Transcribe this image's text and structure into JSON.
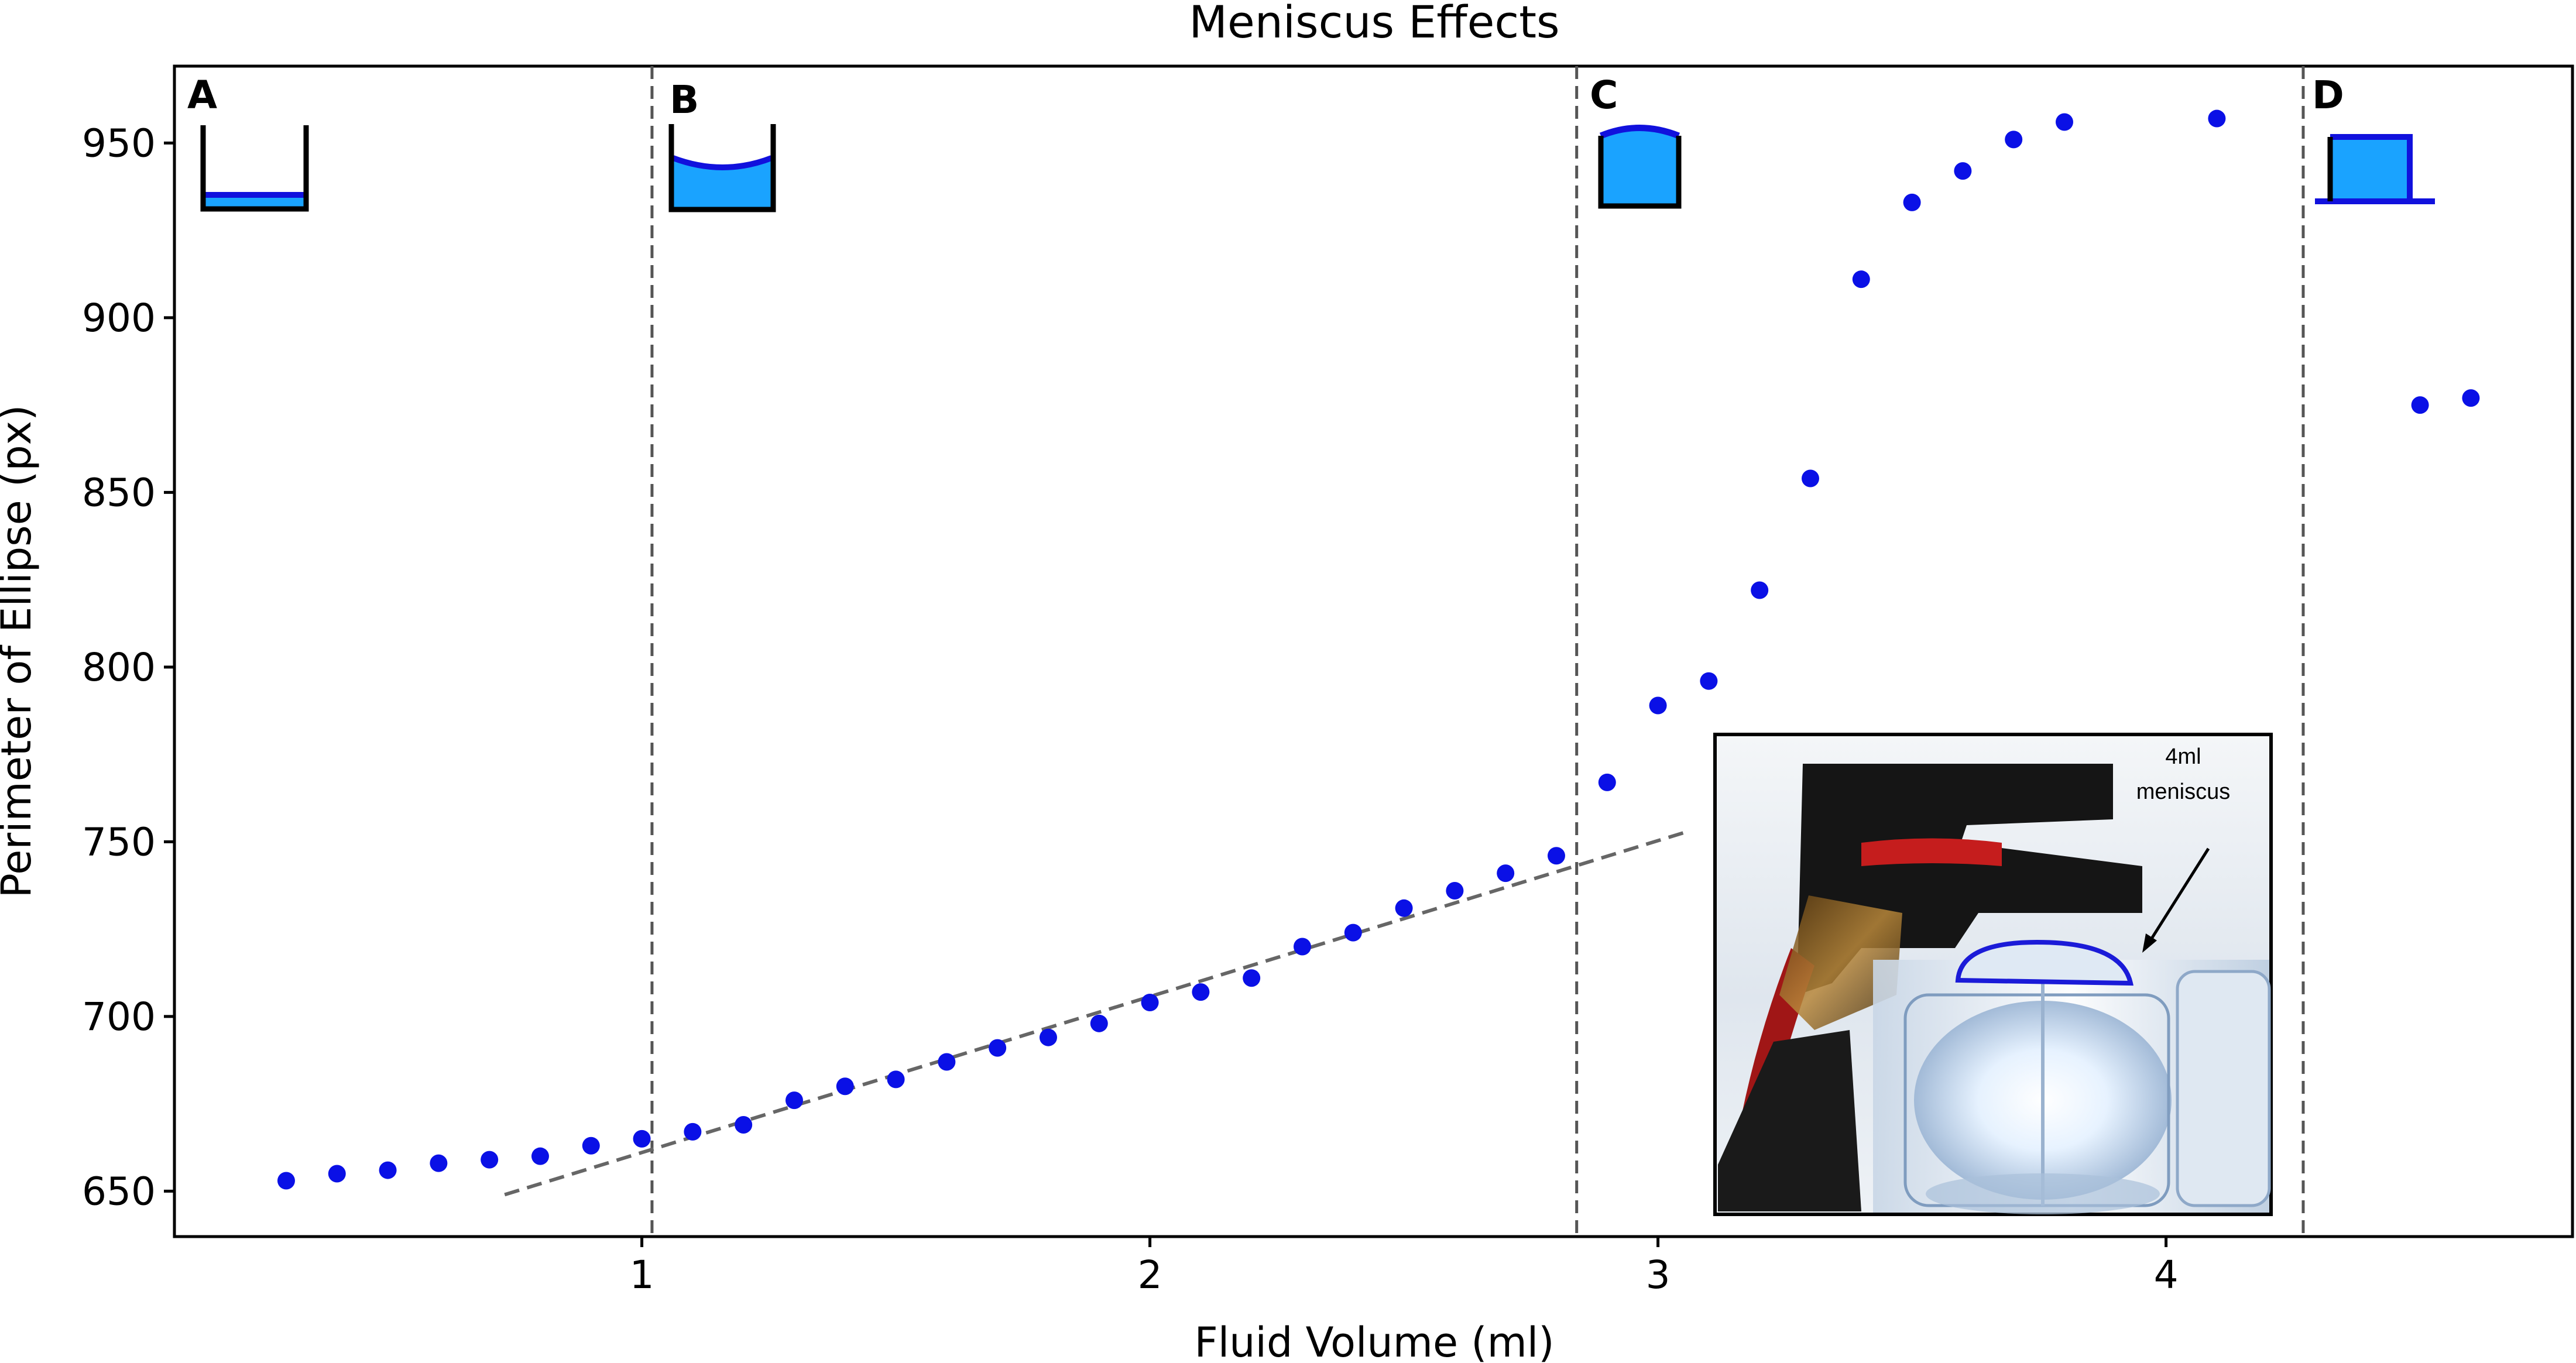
{
  "chart_data": {
    "type": "scatter",
    "title": "Meniscus Effects",
    "xlabel": "Fluid Volume (ml)",
    "ylabel": "Perimeter of Ellipse (px)",
    "xlim": [
      0.08,
      4.8
    ],
    "ylim": [
      637,
      972
    ],
    "x_ticks": [
      1,
      2,
      3,
      4
    ],
    "y_ticks": [
      650,
      700,
      750,
      800,
      850,
      900,
      950
    ],
    "point_color": "#0a10e6",
    "series": [
      {
        "name": "Perimeter",
        "x": [
          0.3,
          0.4,
          0.5,
          0.6,
          0.7,
          0.8,
          0.9,
          1.0,
          1.1,
          1.2,
          1.3,
          1.4,
          1.5,
          1.6,
          1.7,
          1.8,
          1.9,
          2.0,
          2.1,
          2.2,
          2.3,
          2.4,
          2.5,
          2.6,
          2.7,
          2.8,
          2.9,
          3.0,
          3.1,
          3.2,
          3.3,
          3.4,
          3.5,
          3.6,
          3.7,
          3.8,
          4.1,
          4.5,
          4.6
        ],
        "y": [
          653,
          655,
          656,
          658,
          659,
          660,
          663,
          665,
          667,
          669,
          676,
          680,
          682,
          687,
          691,
          694,
          698,
          704,
          707,
          711,
          720,
          724,
          731,
          736,
          741,
          746,
          767,
          789,
          796,
          822,
          854,
          911,
          933,
          942,
          951,
          956,
          957,
          875,
          877
        ]
      }
    ],
    "trend_line": {
      "style": "dashed",
      "color": "#666666",
      "x": [
        0.73,
        3.06
      ],
      "y": [
        649,
        753
      ]
    },
    "region_boundaries": [
      1.02,
      2.84,
      4.27
    ],
    "regions": [
      "A",
      "B",
      "C",
      "D"
    ],
    "inset": {
      "annotation_line1": "4ml",
      "annotation_line2": "meniscus"
    }
  }
}
